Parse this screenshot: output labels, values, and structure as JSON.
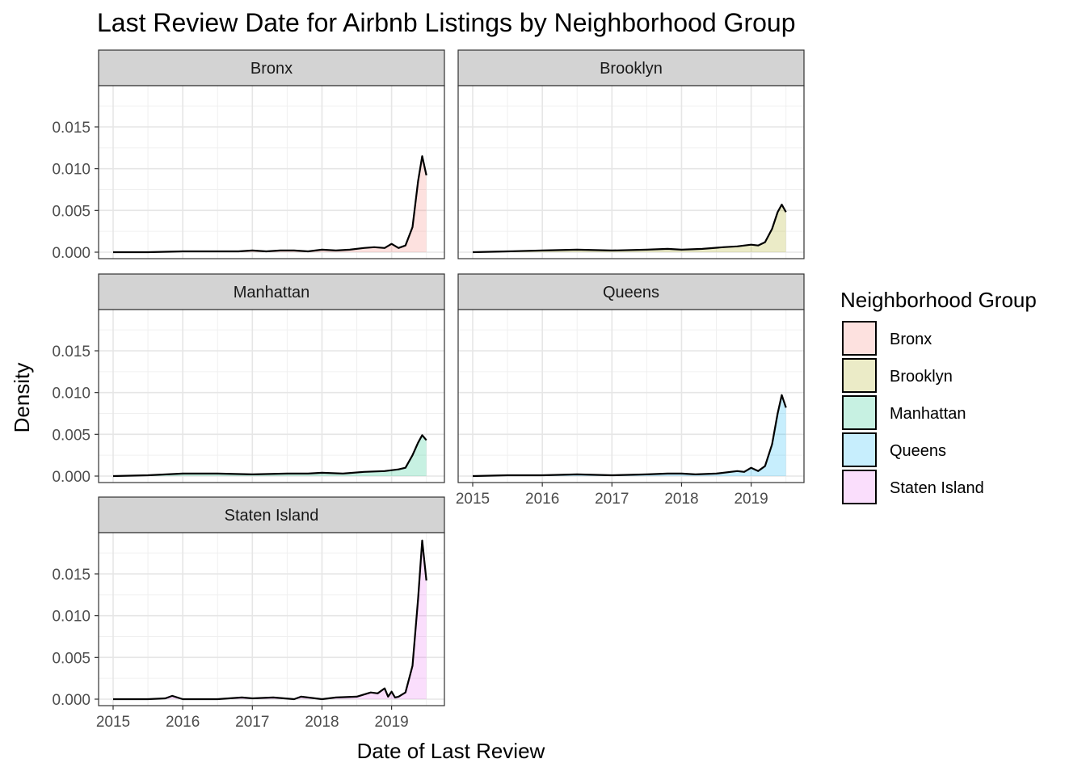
{
  "chart_data": {
    "type": "area",
    "title": "Last Review Date for Airbnb Listings by Neighborhood Group",
    "xlabel": "Date of Last Review",
    "ylabel": "Density",
    "x_ticks": [
      "2015",
      "2016",
      "2017",
      "2018",
      "2019"
    ],
    "y_ticks": [
      "0.000",
      "0.005",
      "0.010",
      "0.015"
    ],
    "xlim": [
      2015.0,
      2019.55
    ],
    "ylim": [
      0.0,
      0.0195
    ],
    "facet_layout": "wrap, 2 columns",
    "grid": true,
    "legend": {
      "title": "Neighborhood Group",
      "position": "right",
      "entries": [
        "Bronx",
        "Brooklyn",
        "Manhattan",
        "Queens",
        "Staten Island"
      ]
    },
    "colors": {
      "Bronx": "#F8766D",
      "Brooklyn": "#A3A500",
      "Manhattan": "#00BF7D",
      "Queens": "#00B0F6",
      "Staten Island": "#E76BF3"
    },
    "series": [
      {
        "name": "Bronx",
        "x": [
          2015.0,
          2015.5,
          2016.0,
          2016.5,
          2016.8,
          2017.0,
          2017.2,
          2017.4,
          2017.6,
          2017.8,
          2018.0,
          2018.2,
          2018.4,
          2018.6,
          2018.75,
          2018.9,
          2019.0,
          2019.1,
          2019.2,
          2019.3,
          2019.38,
          2019.44,
          2019.5
        ],
        "y": [
          0.0,
          0.0,
          0.0001,
          0.0001,
          0.0001,
          0.0002,
          0.0001,
          0.0002,
          0.0002,
          0.0001,
          0.0003,
          0.0002,
          0.0003,
          0.0005,
          0.0006,
          0.0005,
          0.001,
          0.0005,
          0.0008,
          0.003,
          0.0085,
          0.0115,
          0.0092
        ]
      },
      {
        "name": "Brooklyn",
        "x": [
          2015.0,
          2015.5,
          2016.0,
          2016.5,
          2017.0,
          2017.5,
          2017.8,
          2018.0,
          2018.3,
          2018.6,
          2018.8,
          2019.0,
          2019.1,
          2019.2,
          2019.3,
          2019.38,
          2019.44,
          2019.5
        ],
        "y": [
          0.0,
          0.0001,
          0.0002,
          0.0003,
          0.0002,
          0.0003,
          0.0004,
          0.0003,
          0.0004,
          0.0006,
          0.0007,
          0.0009,
          0.0008,
          0.0012,
          0.0028,
          0.0048,
          0.0057,
          0.0048
        ]
      },
      {
        "name": "Manhattan",
        "x": [
          2015.0,
          2015.5,
          2016.0,
          2016.5,
          2017.0,
          2017.5,
          2017.8,
          2018.0,
          2018.3,
          2018.6,
          2018.9,
          2019.1,
          2019.2,
          2019.3,
          2019.38,
          2019.44,
          2019.5
        ],
        "y": [
          0.0,
          0.0001,
          0.0003,
          0.0003,
          0.0002,
          0.0003,
          0.0003,
          0.0004,
          0.0003,
          0.0005,
          0.0006,
          0.0008,
          0.001,
          0.0025,
          0.004,
          0.0049,
          0.0043
        ]
      },
      {
        "name": "Queens",
        "x": [
          2015.0,
          2015.5,
          2016.0,
          2016.5,
          2017.0,
          2017.5,
          2017.8,
          2018.0,
          2018.2,
          2018.5,
          2018.8,
          2018.9,
          2019.0,
          2019.1,
          2019.2,
          2019.3,
          2019.38,
          2019.44,
          2019.5
        ],
        "y": [
          0.0,
          0.0001,
          0.0001,
          0.0002,
          0.0001,
          0.0002,
          0.0003,
          0.0003,
          0.0002,
          0.0003,
          0.0006,
          0.0005,
          0.001,
          0.0006,
          0.0012,
          0.0038,
          0.0075,
          0.0097,
          0.0082
        ]
      },
      {
        "name": "Staten Island",
        "x": [
          2015.0,
          2015.5,
          2015.75,
          2015.85,
          2016.0,
          2016.5,
          2016.85,
          2017.0,
          2017.3,
          2017.6,
          2017.7,
          2018.0,
          2018.2,
          2018.5,
          2018.7,
          2018.8,
          2018.9,
          2018.95,
          2019.0,
          2019.05,
          2019.1,
          2019.2,
          2019.3,
          2019.38,
          2019.44,
          2019.5
        ],
        "y": [
          0.0,
          0.0,
          0.0001,
          0.0004,
          0.0,
          0.0,
          0.0002,
          0.0001,
          0.0002,
          0.0,
          0.0003,
          0.0,
          0.0002,
          0.0003,
          0.0008,
          0.0007,
          0.0013,
          0.0003,
          0.0009,
          0.0002,
          0.0003,
          0.0008,
          0.004,
          0.012,
          0.019,
          0.0142
        ]
      }
    ]
  }
}
